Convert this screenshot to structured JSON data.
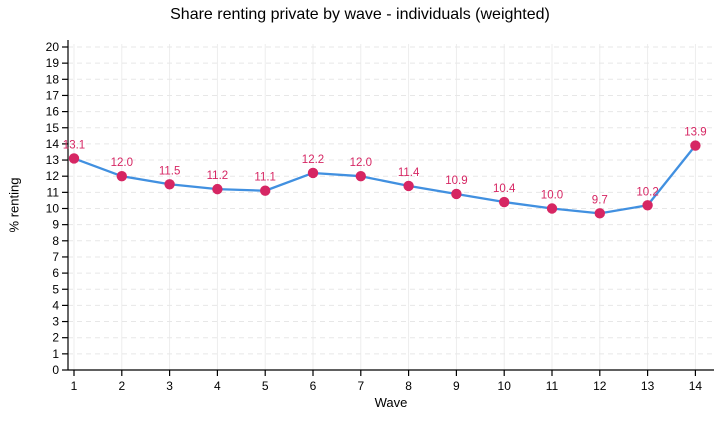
{
  "colors": {
    "line": "#4190e0",
    "marker": "#d62663",
    "data_label": "#d62663",
    "grid_horizontal": "#e7e7e7",
    "grid_vertical": "#ededed",
    "axis": "#000000",
    "tick_text": "#000000"
  },
  "chart_data": {
    "type": "line",
    "title": "Share renting private by wave - individuals (weighted)",
    "xlabel": "Wave",
    "ylabel": "% renting",
    "x": [
      1,
      2,
      3,
      4,
      5,
      6,
      7,
      8,
      9,
      10,
      11,
      12,
      13,
      14
    ],
    "values": [
      13.1,
      12.0,
      11.5,
      11.2,
      11.1,
      12.2,
      12.0,
      11.4,
      10.9,
      10.4,
      10.0,
      9.7,
      10.2,
      13.9
    ],
    "data_labels": [
      "13.1",
      "12.0",
      "11.5",
      "11.2",
      "11.1",
      "12.2",
      "12.0",
      "11.4",
      "10.9",
      "10.4",
      "10.0",
      "9.7",
      "10.2",
      "13.9"
    ],
    "ylim": [
      0,
      20
    ],
    "ytick_step": 1,
    "xticks": [
      1,
      2,
      3,
      4,
      5,
      6,
      7,
      8,
      9,
      10,
      11,
      12,
      13,
      14
    ],
    "grid": true,
    "grid_style": "dashed-horizontal, light-vertical",
    "legend": "none",
    "marker": "filled-circle"
  }
}
